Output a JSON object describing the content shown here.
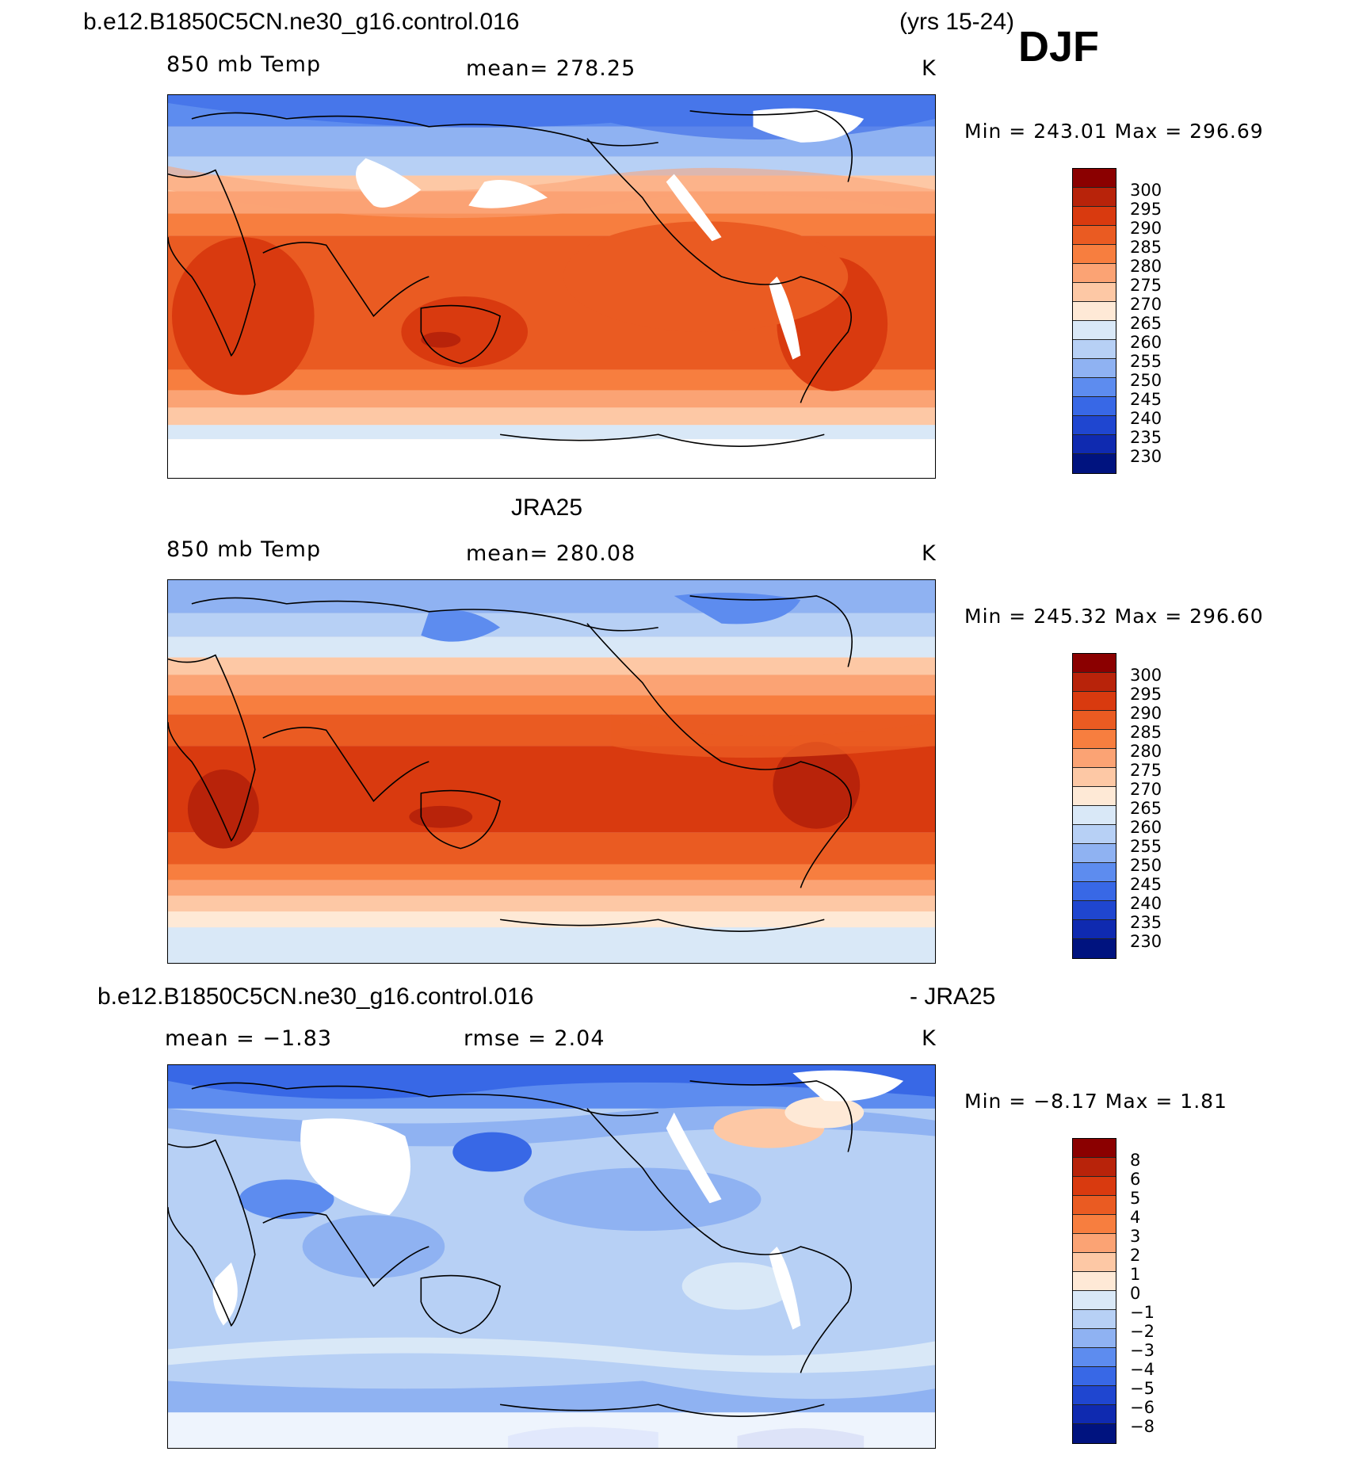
{
  "header": {
    "case_name": "b.e12.B1850C5CN.ne30_g16.control.016",
    "years": "(yrs 15-24)",
    "season": "DJF"
  },
  "panels": [
    {
      "id": "model",
      "variable": "850 mb Temp",
      "mean": "mean=  278.25",
      "units": "K",
      "minmax": "Min  =  243.01  Max  =  296.69"
    },
    {
      "id": "obs",
      "title": "JRA25",
      "variable": "850 mb Temp",
      "mean": "mean=  280.08",
      "units": "K",
      "minmax": "Min  =  245.32  Max  =  296.60"
    },
    {
      "id": "diff",
      "title_left": "b.e12.B1850C5CN.ne30_g16.control.016",
      "title_right": "- JRA25",
      "mean": "mean =   −1.83",
      "rmse": "rmse =    2.04",
      "units": "K",
      "minmax": "Min  =   −8.17  Max  =     1.81"
    }
  ],
  "colorbars": {
    "absolute": {
      "labels": [
        "300",
        "295",
        "290",
        "285",
        "280",
        "275",
        "270",
        "265",
        "260",
        "255",
        "250",
        "245",
        "240",
        "235",
        "230"
      ],
      "colors": [
        "#8b0000",
        "#b8230a",
        "#d93a0f",
        "#ea5b22",
        "#f77e3f",
        "#fba374",
        "#fdc8a5",
        "#fee9d6",
        "#d9e8f7",
        "#b7d0f5",
        "#8fb2f2",
        "#5d8cef",
        "#3868e6",
        "#1f46d0",
        "#0f2ab0",
        "#00137f"
      ]
    },
    "difference": {
      "labels": [
        "8",
        "6",
        "5",
        "4",
        "3",
        "2",
        "1",
        "0",
        "−1",
        "−2",
        "−3",
        "−4",
        "−5",
        "−6",
        "−8"
      ],
      "colors": [
        "#8b0000",
        "#b8230a",
        "#d93a0f",
        "#ea5b22",
        "#f77e3f",
        "#fba374",
        "#fdc8a5",
        "#fee9d6",
        "#d9e8f7",
        "#b7d0f5",
        "#8fb2f2",
        "#5d8cef",
        "#3868e6",
        "#1f46d0",
        "#0f2ab0",
        "#00137f"
      ]
    }
  }
}
